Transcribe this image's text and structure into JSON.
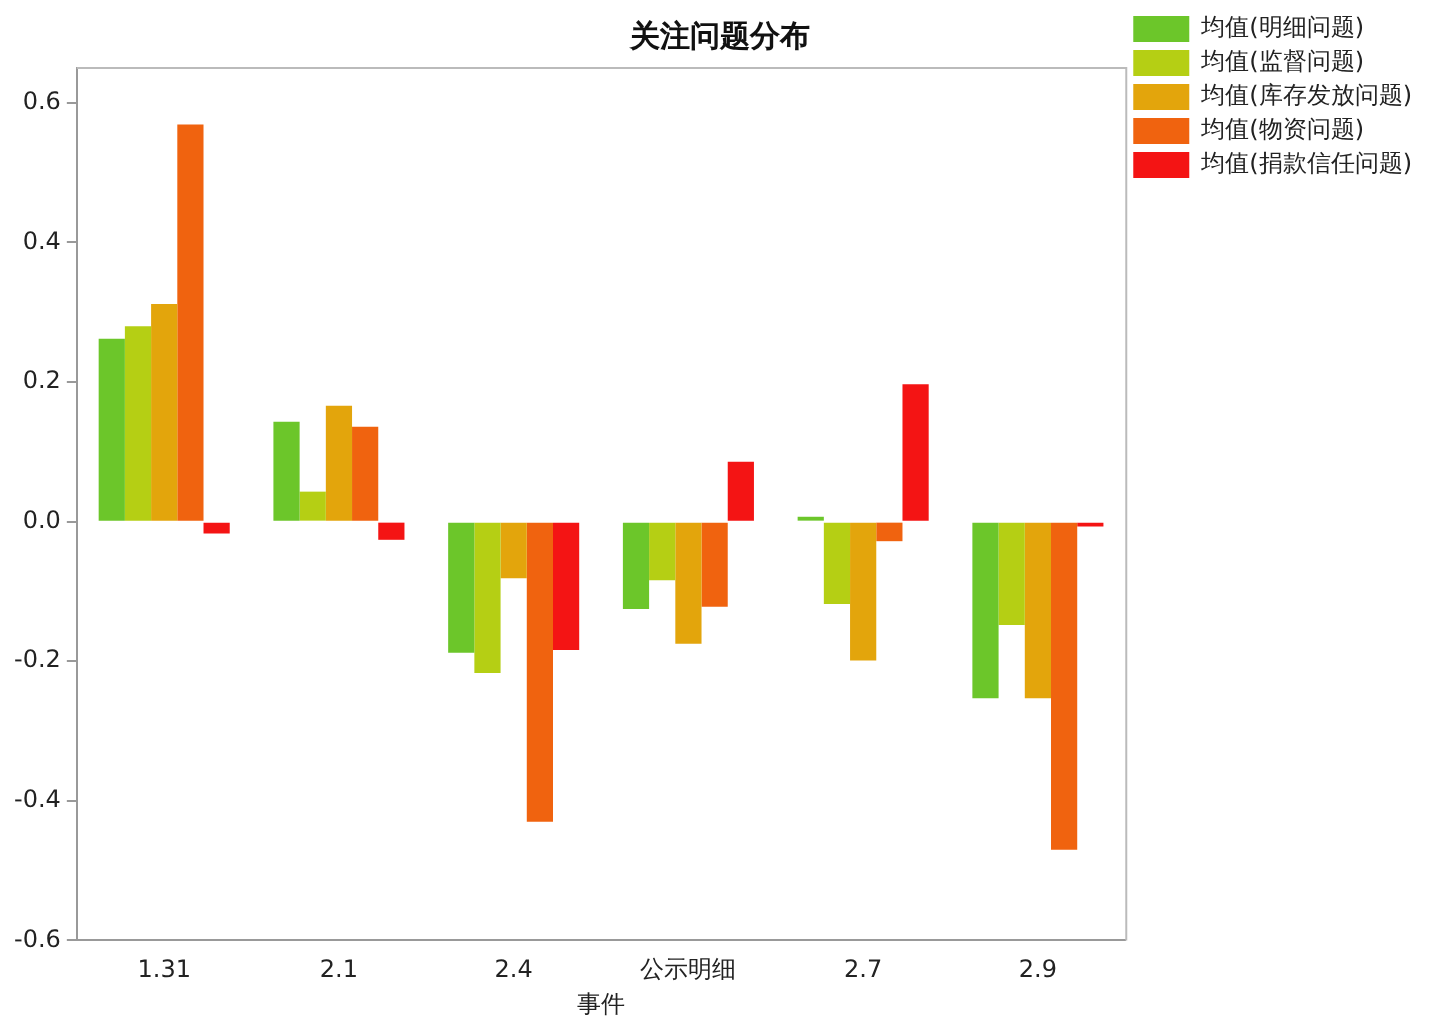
{
  "chart_data": {
    "type": "bar",
    "title": "关注问题分布",
    "xlabel": "事件",
    "categories": [
      "1.31",
      "2.1",
      "2.4",
      "公示明细",
      "2.7",
      "2.9"
    ],
    "series": [
      {
        "name": "均值(明细问题)",
        "color": "#6cc62a",
        "values": [
          0.262,
          0.143,
          -0.188,
          -0.125,
          0.007,
          -0.253
        ]
      },
      {
        "name": "均值(监督问题)",
        "color": "#b5cf14",
        "values": [
          0.28,
          0.043,
          -0.217,
          -0.084,
          -0.118,
          -0.148
        ]
      },
      {
        "name": "均值(库存发放问题)",
        "color": "#e3a50c",
        "values": [
          0.312,
          0.166,
          -0.081,
          -0.175,
          -0.199,
          -0.253
        ]
      },
      {
        "name": "均值(物资问题)",
        "color": "#f0630f",
        "values": [
          0.569,
          0.136,
          -0.43,
          -0.122,
          -0.028,
          -0.47
        ]
      },
      {
        "name": "均值(捐款信任问题)",
        "color": "#f41414",
        "values": [
          -0.017,
          -0.026,
          -0.184,
          0.086,
          0.197,
          -0.007
        ]
      }
    ],
    "ylim": [
      -0.6,
      0.65
    ],
    "yticks": [
      {
        "value": -0.6,
        "label": "-0.6"
      },
      {
        "value": -0.4,
        "label": "-0.4"
      },
      {
        "value": -0.2,
        "label": "-0.2"
      },
      {
        "value": 0,
        "label": "0.0"
      },
      {
        "value": 0.2,
        "label": "0.2"
      },
      {
        "value": 0.4,
        "label": "0.4"
      },
      {
        "value": 0.6,
        "label": "0.6"
      }
    ],
    "grid": false,
    "legend": "top right"
  }
}
